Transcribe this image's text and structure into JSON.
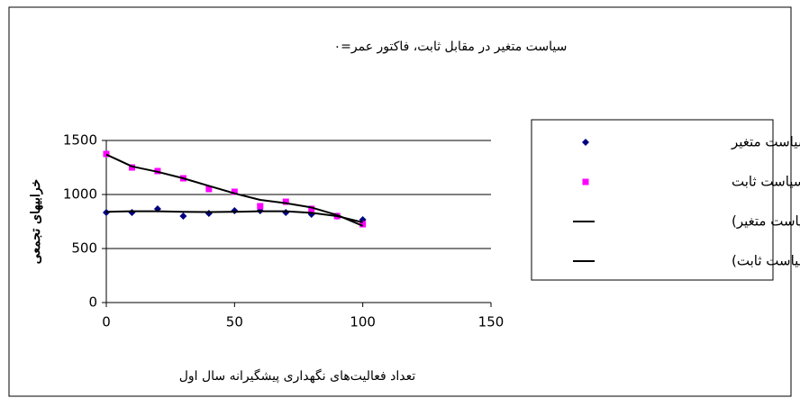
{
  "chart_data": {
    "type": "scatter",
    "title": "سیاست متغیر در مقابل ثابت، فاکتور عمر=۰",
    "x_label": "تعداد فعالیت‌های نگهداری پیشگیرانه سال اول",
    "y_label": "خرابیهای تجمعی",
    "x": [
      0,
      10,
      20,
      30,
      40,
      50,
      60,
      70,
      80,
      90,
      100
    ],
    "series": [
      {
        "name": "سیاست متغیر",
        "style": "marker",
        "marker": "diamond",
        "color": "#000080",
        "values": [
          833,
          833,
          867,
          800,
          825,
          850,
          850,
          833,
          817,
          800,
          767
        ]
      },
      {
        "name": "سیاست ثابت",
        "style": "marker",
        "marker": "square",
        "color": "#ff00ff",
        "values": [
          1375,
          1250,
          1217,
          1150,
          1050,
          1025,
          892,
          933,
          867,
          800,
          725
        ]
      },
      {
        "name": "Poly. (سیاست متغیر)",
        "style": "line",
        "color": "#000000",
        "values": [
          840,
          845,
          845,
          840,
          838,
          840,
          845,
          845,
          830,
          800,
          742
        ]
      },
      {
        "name": "Poly. (سیاست ثابت)",
        "style": "line",
        "color": "#000000",
        "values": [
          1370,
          1260,
          1210,
          1150,
          1080,
          1010,
          950,
          920,
          880,
          810,
          710
        ]
      }
    ],
    "xlim": [
      0,
      150
    ],
    "xticks": [
      0,
      50,
      100,
      150
    ],
    "ylim": [
      0,
      1500
    ],
    "yticks": [
      0,
      500,
      1000,
      1500
    ],
    "grid": true,
    "legend": "right"
  }
}
